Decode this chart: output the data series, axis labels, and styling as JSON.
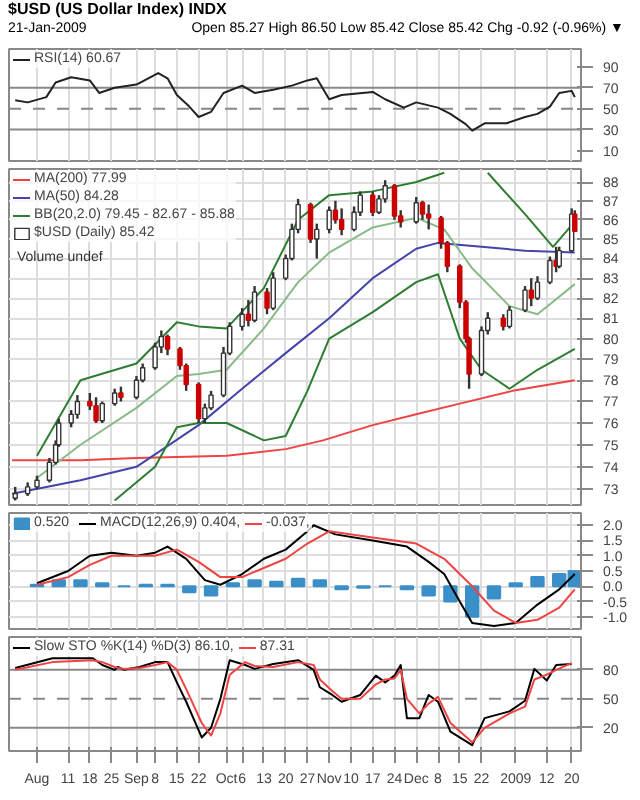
{
  "chart_data": [
    {
      "type": "line",
      "title": "$USD (US Dollar Index) INDX",
      "subtitle": "21-Jan-2009",
      "annotations": [
        "Open 85.27 High 86.50 Low 85.42 Close 85.42 Chg -0.92 (-0.96%) ▼"
      ],
      "xlim": [
        "2008-07-23",
        "2009-01-23"
      ],
      "ylim": [
        0,
        107
      ],
      "yticks": [
        10,
        30,
        50,
        70,
        90
      ],
      "tick_labels": "y",
      "grid": "x",
      "legend": "top left",
      "xticks": [
        {
          "value": "2008-08-01",
          "label": null
        },
        {
          "value": "2008-08-11",
          "label": null
        },
        {
          "value": "2008-08-18",
          "label": null
        },
        {
          "value": "2008-08-25",
          "label": null
        },
        {
          "value": "2008-09-02",
          "label": null
        },
        {
          "value": "2008-09-08",
          "label": null
        },
        {
          "value": "2008-09-15",
          "label": null
        },
        {
          "value": "2008-09-22",
          "label": null
        },
        {
          "value": "2008-10-01",
          "label": null
        },
        {
          "value": "2008-10-06",
          "label": null
        },
        {
          "value": "2008-10-13",
          "label": null
        },
        {
          "value": "2008-10-20",
          "label": null
        },
        {
          "value": "2008-10-27",
          "label": null
        },
        {
          "value": "2008-11-03",
          "label": null
        },
        {
          "value": "2008-11-10",
          "label": null
        },
        {
          "value": "2008-11-17",
          "label": null
        },
        {
          "value": "2008-11-24",
          "label": null
        },
        {
          "value": "2008-12-01",
          "label": null
        },
        {
          "value": "2008-12-08",
          "label": null
        },
        {
          "value": "2008-12-15",
          "label": null
        },
        {
          "value": "2008-12-22",
          "label": null
        },
        {
          "value": "2009-01-02",
          "label": null
        },
        {
          "value": "2009-01-12",
          "label": null
        },
        {
          "value": "2009-01-20",
          "label": null
        }
      ],
      "ref_lines": [
        {
          "axis": "y",
          "value": 70,
          "color": "#888888",
          "line_style": "solid"
        },
        {
          "axis": "y",
          "value": 50,
          "color": "#888888",
          "line_style": "dashed"
        },
        {
          "axis": "y",
          "value": 30,
          "color": "#888888",
          "line_style": "solid"
        }
      ],
      "series": [
        {
          "name": "RSI(14) 60.67",
          "color": "#222222",
          "x": [
            "2008-07-25",
            "2008-07-29",
            "2008-08-04",
            "2008-08-07",
            "2008-08-12",
            "2008-08-18",
            "2008-08-21",
            "2008-08-26",
            "2008-09-02",
            "2008-09-09",
            "2008-09-12",
            "2008-09-15",
            "2008-09-19",
            "2008-09-22",
            "2008-09-26",
            "2008-09-30",
            "2008-10-06",
            "2008-10-10",
            "2008-10-16",
            "2008-10-22",
            "2008-10-27",
            "2008-10-30",
            "2008-11-03",
            "2008-11-07",
            "2008-11-17",
            "2008-11-21",
            "2008-11-27",
            "2008-12-01",
            "2008-12-08",
            "2008-12-12",
            "2008-12-17",
            "2008-12-19",
            "2008-12-23",
            "2008-12-30",
            "2009-01-05",
            "2009-01-09",
            "2009-01-13",
            "2009-01-16",
            "2009-01-20",
            "2009-01-21"
          ],
          "values": [
            58,
            56,
            61,
            75,
            80,
            77,
            65,
            70,
            73,
            84,
            79,
            63,
            52,
            42,
            47,
            65,
            72,
            65,
            68,
            72,
            77,
            79,
            59,
            63,
            66,
            59,
            51,
            56,
            51,
            45,
            35,
            29,
            36,
            36,
            42,
            45,
            52,
            65,
            67,
            61
          ]
        }
      ]
    },
    {
      "type": "candlestick",
      "log": true,
      "annotations": [
        "Volume undef"
      ],
      "xlim": [
        "2008-07-23",
        "2009-01-23"
      ],
      "ylim": [
        72.3,
        88.7
      ],
      "yticks": [
        73,
        74,
        75,
        76,
        77,
        78,
        79,
        80,
        81,
        82,
        83,
        84,
        85,
        86,
        87,
        88
      ],
      "tick_labels": "y",
      "grid": true,
      "legend": "top left",
      "xticks": [
        {
          "value": "2008-08-01",
          "label": null
        },
        {
          "value": "2008-08-11",
          "label": null
        },
        {
          "value": "2008-08-18",
          "label": null
        },
        {
          "value": "2008-08-25",
          "label": null
        },
        {
          "value": "2008-09-02",
          "label": null
        },
        {
          "value": "2008-09-08",
          "label": null
        },
        {
          "value": "2008-09-15",
          "label": null
        },
        {
          "value": "2008-09-22",
          "label": null
        },
        {
          "value": "2008-10-01",
          "label": null
        },
        {
          "value": "2008-10-06",
          "label": null
        },
        {
          "value": "2008-10-13",
          "label": null
        },
        {
          "value": "2008-10-20",
          "label": null
        },
        {
          "value": "2008-10-27",
          "label": null
        },
        {
          "value": "2008-11-03",
          "label": null
        },
        {
          "value": "2008-11-10",
          "label": null
        },
        {
          "value": "2008-11-17",
          "label": null
        },
        {
          "value": "2008-11-24",
          "label": null
        },
        {
          "value": "2008-12-01",
          "label": null
        },
        {
          "value": "2008-12-08",
          "label": null
        },
        {
          "value": "2008-12-15",
          "label": null
        },
        {
          "value": "2008-12-22",
          "label": null
        },
        {
          "value": "2009-01-02",
          "label": null
        },
        {
          "value": "2009-01-12",
          "label": null
        },
        {
          "value": "2009-01-20",
          "label": null
        }
      ],
      "series": [
        {
          "name": "MA(200) 77.99",
          "type": "line",
          "color": "#ee4444",
          "x": [
            "2008-07-24",
            "2008-08-15",
            "2008-09-02",
            "2008-10-01",
            "2008-10-20",
            "2008-11-01",
            "2008-11-17",
            "2008-12-01",
            "2008-12-15",
            "2009-01-01",
            "2009-01-21"
          ],
          "values": [
            74.3,
            74.3,
            74.4,
            74.5,
            74.8,
            75.2,
            75.9,
            76.4,
            76.9,
            77.5,
            78.0
          ]
        },
        {
          "name": "MA(50) 84.28",
          "type": "line",
          "color": "#4444aa",
          "x": [
            "2008-07-24",
            "2008-08-15",
            "2008-09-02",
            "2008-09-22",
            "2008-10-06",
            "2008-10-20",
            "2008-11-03",
            "2008-11-17",
            "2008-12-01",
            "2008-12-08",
            "2008-12-22",
            "2009-01-05",
            "2009-01-21"
          ],
          "values": [
            72.8,
            73.4,
            74.0,
            75.9,
            77.6,
            79.3,
            81.0,
            83.0,
            84.5,
            84.8,
            84.6,
            84.4,
            84.3
          ]
        },
        {
          "name": "BB(20,2.0) 79.45 - 82.67 - 85.88",
          "type": "line",
          "color": "#2e7d32",
          "x": [
            "2008-08-01",
            "2008-08-15",
            "2008-09-02",
            "2008-09-15",
            "2008-09-22",
            "2008-10-01",
            "2008-10-13",
            "2008-10-24",
            "2008-11-03",
            "2008-11-17",
            "2008-12-01",
            "2008-12-10",
            "2008-12-17",
            "2008-12-24",
            "2009-01-05",
            "2009-01-14",
            "2009-01-21"
          ],
          "values": [
            74.5,
            78.0,
            78.8,
            80.8,
            80.6,
            80.5,
            82.5,
            86.0,
            87.3,
            87.5,
            88.0,
            88.5,
            null,
            88.5,
            86.3,
            84.6,
            85.9
          ]
        },
        {
          "type": "line",
          "color": "#88bb88",
          "x": [
            "2008-08-01",
            "2008-08-15",
            "2008-09-02",
            "2008-09-15",
            "2008-09-22",
            "2008-10-01",
            "2008-10-13",
            "2008-10-24",
            "2008-11-03",
            "2008-11-17",
            "2008-12-01",
            "2008-12-10",
            "2008-12-19",
            "2008-12-31",
            "2009-01-09",
            "2009-01-21"
          ],
          "values": [
            73.5,
            75.0,
            76.7,
            78.2,
            78.3,
            78.5,
            80.5,
            82.8,
            84.3,
            85.6,
            86.1,
            85.5,
            83.5,
            81.6,
            81.2,
            82.7
          ]
        },
        {
          "type": "line",
          "color": "#2e7d32",
          "x": [
            "2008-08-26",
            "2008-09-08",
            "2008-09-15",
            "2008-09-22",
            "2008-10-01",
            "2008-10-13",
            "2008-10-20",
            "2008-10-27",
            "2008-11-03",
            "2008-11-17",
            "2008-12-01",
            "2008-12-08",
            "2008-12-15",
            "2008-12-22",
            "2008-12-31",
            "2009-01-09",
            "2009-01-21"
          ],
          "values": [
            72.5,
            74.0,
            75.8,
            76.0,
            76.0,
            75.2,
            75.4,
            77.5,
            80.0,
            81.3,
            82.8,
            83.2,
            80.0,
            78.5,
            77.6,
            78.5,
            79.5
          ]
        },
        {
          "name": "$USD (Daily) 85.42",
          "type": "candlestick",
          "colors": [
            "#ffffff",
            "#ffffff",
            "#ffffff",
            "#ffffff",
            "#ffffff",
            "#ffffff",
            "#ffffff",
            "#ffffff",
            "#cc0000",
            "#cc0000",
            "#ffffff",
            "#ffffff",
            "#cc0000",
            "#ffffff",
            "#ffffff",
            "#ffffff",
            "#ffffff",
            "#cc0000",
            "#cc0000",
            "#cc0000",
            "#cc0000",
            "#ffffff",
            "#ffffff",
            "#ffffff",
            "#ffffff",
            "#ffffff",
            "#cc0000",
            "#ffffff",
            "#cc0000",
            "#ffffff",
            "#ffffff",
            "#ffffff",
            "#ffffff",
            "#cc0000",
            "#ffffff",
            "#ffffff",
            "#cc0000",
            "#cc0000",
            "#ffffff",
            "#ffffff",
            "#cc0000",
            "#ffffff",
            "#ffffff",
            "#cc0000",
            "#cc0000",
            "#ffffff",
            "#cc0000",
            "#cc0000",
            "#cc0000",
            "#cc0000",
            "#cc0000",
            "#cc0000",
            "#cc0000",
            "#ffffff",
            "#ffffff",
            "#cc0000",
            "#ffffff",
            "#ffffff",
            "#cc0000",
            "#ffffff",
            "#ffffff",
            "#cc0000",
            "#ffffff",
            "#ffffff",
            "#cc0000"
          ],
          "x": [
            "2008-07-25",
            "2008-07-29",
            "2008-08-01",
            "2008-08-05",
            "2008-08-07",
            "2008-08-08",
            "2008-08-12",
            "2008-08-14",
            "2008-08-18",
            "2008-08-20",
            "2008-08-22",
            "2008-08-26",
            "2008-08-28",
            "2008-09-02",
            "2008-09-04",
            "2008-09-08",
            "2008-09-10",
            "2008-09-12",
            "2008-09-16",
            "2008-09-18",
            "2008-09-22",
            "2008-09-24",
            "2008-09-26",
            "2008-09-30",
            "2008-10-02",
            "2008-10-06",
            "2008-10-08",
            "2008-10-10",
            "2008-10-14",
            "2008-10-16",
            "2008-10-20",
            "2008-10-22",
            "2008-10-24",
            "2008-10-28",
            "2008-10-30",
            "2008-11-03",
            "2008-11-05",
            "2008-11-07",
            "2008-11-11",
            "2008-11-13",
            "2008-11-17",
            "2008-11-19",
            "2008-11-21",
            "2008-11-24",
            "2008-11-26",
            "2008-12-01",
            "2008-12-03",
            "2008-12-05",
            "2008-12-09",
            "2008-12-11",
            "2008-12-15",
            "2008-12-17",
            "2008-12-18",
            "2008-12-22",
            "2008-12-24",
            "2008-12-29",
            "2008-12-31",
            "2009-01-05",
            "2009-01-07",
            "2009-01-09",
            "2009-01-13",
            "2009-01-15",
            "2009-01-16",
            "2009-01-20",
            "2009-01-21"
          ],
          "ohlc": [
            [
              72.6,
              73.1,
              72.5,
              72.8
            ],
            [
              72.8,
              73.3,
              72.7,
              73.1
            ],
            [
              73.1,
              73.6,
              73.0,
              73.4
            ],
            [
              73.4,
              74.4,
              73.3,
              74.2
            ],
            [
              74.2,
              75.2,
              74.1,
              75.0
            ],
            [
              75.0,
              76.2,
              74.9,
              76.0
            ],
            [
              76.0,
              76.6,
              75.8,
              76.4
            ],
            [
              76.4,
              77.3,
              76.2,
              77.0
            ],
            [
              77.0,
              77.4,
              76.6,
              76.8
            ],
            [
              76.8,
              77.2,
              76.0,
              76.1
            ],
            [
              76.1,
              77.0,
              76.0,
              76.9
            ],
            [
              76.9,
              77.6,
              76.8,
              77.4
            ],
            [
              77.4,
              77.7,
              77.0,
              77.2
            ],
            [
              77.2,
              78.2,
              77.1,
              78.0
            ],
            [
              78.0,
              78.8,
              77.9,
              78.6
            ],
            [
              78.6,
              79.8,
              78.5,
              79.6
            ],
            [
              79.6,
              80.4,
              79.3,
              80.1
            ],
            [
              80.1,
              80.2,
              79.2,
              79.5
            ],
            [
              79.5,
              79.6,
              78.5,
              78.7
            ],
            [
              78.7,
              78.8,
              77.5,
              77.8
            ],
            [
              77.8,
              77.9,
              76.0,
              76.2
            ],
            [
              76.2,
              76.9,
              76.0,
              76.7
            ],
            [
              76.7,
              77.5,
              76.6,
              77.3
            ],
            [
              77.3,
              79.6,
              77.2,
              79.3
            ],
            [
              79.3,
              80.8,
              79.2,
              80.6
            ],
            [
              80.6,
              81.5,
              80.4,
              81.2
            ],
            [
              81.2,
              81.9,
              80.6,
              80.9
            ],
            [
              80.9,
              82.6,
              80.8,
              82.3
            ],
            [
              82.3,
              82.5,
              81.2,
              81.5
            ],
            [
              81.5,
              83.3,
              81.4,
              83.0
            ],
            [
              83.0,
              84.2,
              82.9,
              84.0
            ],
            [
              84.0,
              85.8,
              83.9,
              85.5
            ],
            [
              85.5,
              87.1,
              85.3,
              86.8
            ],
            [
              86.8,
              86.9,
              84.8,
              85.0
            ],
            [
              85.0,
              85.8,
              84.0,
              85.5
            ],
            [
              85.5,
              86.7,
              85.3,
              86.5
            ],
            [
              86.5,
              87.0,
              85.8,
              86.0
            ],
            [
              86.0,
              86.6,
              85.2,
              85.5
            ],
            [
              85.5,
              86.7,
              85.4,
              86.4
            ],
            [
              86.4,
              87.5,
              86.2,
              87.3
            ],
            [
              87.3,
              87.5,
              86.2,
              86.4
            ],
            [
              86.4,
              87.3,
              86.3,
              87.1
            ],
            [
              87.1,
              88.1,
              86.9,
              87.8
            ],
            [
              87.8,
              87.9,
              86.0,
              86.2
            ],
            [
              86.2,
              86.5,
              85.6,
              85.9
            ],
            [
              85.9,
              87.2,
              85.8,
              86.9
            ],
            [
              86.9,
              87.0,
              86.0,
              86.3
            ],
            [
              86.3,
              86.8,
              85.5,
              86.1
            ],
            [
              86.1,
              86.2,
              84.5,
              84.8
            ],
            [
              84.8,
              84.9,
              83.3,
              83.6
            ],
            [
              83.6,
              83.7,
              81.5,
              81.8
            ],
            [
              81.8,
              81.9,
              79.8,
              80.0
            ],
            [
              80.0,
              80.1,
              77.6,
              78.3
            ],
            [
              78.3,
              80.6,
              78.2,
              80.4
            ],
            [
              80.4,
              81.3,
              80.2,
              81.0
            ],
            [
              81.0,
              81.2,
              80.4,
              80.6
            ],
            [
              80.6,
              81.6,
              80.5,
              81.4
            ],
            [
              81.4,
              82.6,
              81.3,
              82.4
            ],
            [
              82.4,
              83.0,
              81.6,
              82.0
            ],
            [
              82.0,
              83.1,
              81.9,
              82.8
            ],
            [
              82.8,
              84.1,
              82.7,
              83.9
            ],
            [
              83.9,
              84.6,
              83.3,
              83.6
            ],
            [
              83.6,
              84.6,
              83.5,
              84.4
            ],
            [
              84.4,
              86.6,
              84.3,
              86.3
            ],
            [
              86.3,
              86.5,
              85.4,
              85.4
            ]
          ]
        }
      ]
    },
    {
      "type": "line",
      "xlim": [
        "2008-07-23",
        "2009-01-23"
      ],
      "ylim": [
        -1.4,
        2.4
      ],
      "yticks": [
        {
          "value": -1,
          "label": "-1.0"
        },
        -0.5,
        {
          "value": 0,
          "label": "0.0"
        },
        0.5,
        {
          "value": 1,
          "label": "1.0"
        },
        1.5,
        {
          "value": 2,
          "label": "2.0"
        }
      ],
      "tick_labels": "y",
      "grid": true,
      "legend": "top left",
      "xticks": [
        {
          "value": "2008-08-01",
          "label": null
        },
        {
          "value": "2008-08-11",
          "label": null
        },
        {
          "value": "2008-08-18",
          "label": null
        },
        {
          "value": "2008-08-25",
          "label": null
        },
        {
          "value": "2008-09-02",
          "label": null
        },
        {
          "value": "2008-09-08",
          "label": null
        },
        {
          "value": "2008-09-15",
          "label": null
        },
        {
          "value": "2008-09-22",
          "label": null
        },
        {
          "value": "2008-10-01",
          "label": null
        },
        {
          "value": "2008-10-06",
          "label": null
        },
        {
          "value": "2008-10-13",
          "label": null
        },
        {
          "value": "2008-10-20",
          "label": null
        },
        {
          "value": "2008-10-27",
          "label": null
        },
        {
          "value": "2008-11-03",
          "label": null
        },
        {
          "value": "2008-11-10",
          "label": null
        },
        {
          "value": "2008-11-17",
          "label": null
        },
        {
          "value": "2008-11-24",
          "label": null
        },
        {
          "value": "2008-12-01",
          "label": null
        },
        {
          "value": "2008-12-08",
          "label": null
        },
        {
          "value": "2008-12-15",
          "label": null
        },
        {
          "value": "2008-12-22",
          "label": null
        },
        {
          "value": "2009-01-02",
          "label": null
        },
        {
          "value": "2009-01-12",
          "label": null
        },
        {
          "value": "2009-01-20",
          "label": null
        }
      ],
      "series": [
        {
          "name": "0.520",
          "type": "bar",
          "color": "#3a8fc8",
          "x": [
            "2008-08-01",
            "2008-08-08",
            "2008-08-15",
            "2008-08-22",
            "2008-08-29",
            "2008-09-05",
            "2008-09-12",
            "2008-09-19",
            "2008-09-26",
            "2008-10-03",
            "2008-10-10",
            "2008-10-17",
            "2008-10-24",
            "2008-10-31",
            "2008-11-07",
            "2008-11-14",
            "2008-11-21",
            "2008-11-28",
            "2008-12-05",
            "2008-12-12",
            "2008-12-19",
            "2008-12-26",
            "2009-01-02",
            "2009-01-09",
            "2009-01-16",
            "2009-01-21"
          ],
          "values": [
            0.05,
            0.2,
            0.2,
            0.1,
            0.0,
            0.05,
            0.05,
            -0.2,
            -0.3,
            0.1,
            0.2,
            0.15,
            0.25,
            0.2,
            -0.1,
            -0.05,
            0.0,
            -0.1,
            -0.3,
            -0.5,
            -1.0,
            -0.4,
            0.1,
            0.3,
            0.4,
            0.5
          ]
        },
        {
          "name": "MACD(12,26,9) 0.404,",
          "color": "#000000",
          "x": [
            "2008-08-01",
            "2008-08-11",
            "2008-08-18",
            "2008-08-25",
            "2008-09-02",
            "2008-09-08",
            "2008-09-12",
            "2008-09-18",
            "2008-09-24",
            "2008-09-29",
            "2008-10-06",
            "2008-10-13",
            "2008-10-20",
            "2008-10-27",
            "2008-10-29",
            "2008-11-05",
            "2008-11-17",
            "2008-11-28",
            "2008-12-05",
            "2008-12-10",
            "2008-12-15",
            "2008-12-19",
            "2008-12-26",
            "2009-01-02",
            "2009-01-09",
            "2009-01-16",
            "2009-01-21"
          ],
          "values": [
            0.1,
            0.5,
            1.0,
            1.1,
            1.0,
            1.1,
            1.3,
            0.9,
            0.2,
            0.05,
            0.4,
            0.9,
            1.2,
            1.8,
            2.0,
            1.7,
            1.5,
            1.3,
            0.8,
            0.4,
            -0.5,
            -1.2,
            -1.3,
            -1.2,
            -0.6,
            -0.1,
            0.4
          ]
        },
        {
          "name": "-0.037,",
          "color": "#ee4444",
          "x": [
            "2008-08-01",
            "2008-08-11",
            "2008-08-18",
            "2008-08-25",
            "2008-09-08",
            "2008-09-15",
            "2008-09-22",
            "2008-09-29",
            "2008-10-06",
            "2008-10-20",
            "2008-10-27",
            "2008-11-03",
            "2008-11-17",
            "2008-12-01",
            "2008-12-10",
            "2008-12-19",
            "2008-12-26",
            "2009-01-02",
            "2009-01-09",
            "2009-01-16",
            "2009-01-21"
          ],
          "values": [
            0.05,
            0.3,
            0.7,
            1.0,
            1.0,
            1.2,
            0.8,
            0.3,
            0.3,
            0.9,
            1.4,
            1.8,
            1.6,
            1.4,
            0.9,
            0.0,
            -0.8,
            -1.2,
            -1.1,
            -0.7,
            -0.1
          ]
        }
      ]
    },
    {
      "type": "line",
      "xlim": [
        "2008-07-23",
        "2009-01-23"
      ],
      "ylim": [
        -4,
        114
      ],
      "yticks": [
        20,
        50,
        80
      ],
      "grid": "x",
      "legend": "top left",
      "xticks": [
        {
          "value": "2008-08-01",
          "label": "Aug"
        },
        {
          "value": "2008-08-11",
          "label": "11"
        },
        {
          "value": "2008-08-18",
          "label": "18"
        },
        {
          "value": "2008-08-25",
          "label": "25"
        },
        {
          "value": "2008-09-02",
          "label": "Sep"
        },
        {
          "value": "2008-09-08",
          "label": "8"
        },
        {
          "value": "2008-09-15",
          "label": "15"
        },
        {
          "value": "2008-09-22",
          "label": "22"
        },
        {
          "value": "2008-10-01",
          "label": "Oct"
        },
        {
          "value": "2008-10-06",
          "label": "6"
        },
        {
          "value": "2008-10-13",
          "label": "13"
        },
        {
          "value": "2008-10-20",
          "label": "20"
        },
        {
          "value": "2008-10-27",
          "label": "27"
        },
        {
          "value": "2008-11-03",
          "label": "Nov"
        },
        {
          "value": "2008-11-10",
          "label": "10"
        },
        {
          "value": "2008-11-17",
          "label": "17"
        },
        {
          "value": "2008-11-24",
          "label": "24"
        },
        {
          "value": "2008-12-01",
          "label": "Dec"
        },
        {
          "value": "2008-12-08",
          "label": "8"
        },
        {
          "value": "2008-12-15",
          "label": "15"
        },
        {
          "value": "2008-12-22",
          "label": "22"
        },
        {
          "value": "2009-01-02",
          "label": "2009"
        },
        {
          "value": "2009-01-12",
          "label": "12"
        },
        {
          "value": "2009-01-20",
          "label": "20"
        }
      ],
      "ref_lines": [
        {
          "axis": "y",
          "value": 80,
          "color": "#888888",
          "line_style": "solid"
        },
        {
          "axis": "y",
          "value": 50,
          "color": "#888888",
          "line_style": "dashed"
        },
        {
          "axis": "y",
          "value": 20,
          "color": "#888888",
          "line_style": "solid"
        }
      ],
      "series": [
        {
          "name": "Slow STO %K(14) %D(3) 86.10,",
          "color": "#000000",
          "x": [
            "2008-07-25",
            "2008-08-06",
            "2008-08-19",
            "2008-08-22",
            "2008-08-26",
            "2008-08-27",
            "2008-08-29",
            "2008-09-03",
            "2008-09-08",
            "2008-09-12",
            "2008-09-15",
            "2008-09-18",
            "2008-09-23",
            "2008-09-26",
            "2008-09-29",
            "2008-10-02",
            "2008-10-07",
            "2008-10-10",
            "2008-10-16",
            "2008-10-24",
            "2008-10-29",
            "2008-10-31",
            "2008-11-04",
            "2008-11-07",
            "2008-11-13",
            "2008-11-18",
            "2008-11-21",
            "2008-11-24",
            "2008-11-26",
            "2008-11-28",
            "2008-12-02",
            "2008-12-05",
            "2008-12-08",
            "2008-12-12",
            "2008-12-19",
            "2008-12-23",
            "2008-12-31",
            "2009-01-05",
            "2009-01-08",
            "2009-01-12",
            "2009-01-15",
            "2009-01-20"
          ],
          "values": [
            82,
            92,
            92,
            85,
            80,
            83,
            80,
            83,
            88,
            88,
            67,
            47,
            10,
            20,
            50,
            90,
            85,
            81,
            86,
            90,
            80,
            62,
            54,
            47,
            54,
            74,
            67,
            74,
            85,
            30,
            30,
            54,
            47,
            16,
            2,
            30,
            37,
            48,
            81,
            69,
            85,
            86
          ]
        },
        {
          "name": "87.31",
          "color": "#ee4444",
          "x": [
            "2008-07-25",
            "2008-08-06",
            "2008-08-19",
            "2008-08-22",
            "2008-08-26",
            "2008-08-27",
            "2008-08-29",
            "2008-09-03",
            "2008-09-08",
            "2008-09-12",
            "2008-09-15",
            "2008-09-18",
            "2008-09-23",
            "2008-09-26",
            "2008-09-29",
            "2008-10-02",
            "2008-10-07",
            "2008-10-10",
            "2008-10-16",
            "2008-10-24",
            "2008-10-29",
            "2008-10-31",
            "2008-11-04",
            "2008-11-07",
            "2008-11-13",
            "2008-11-18",
            "2008-11-21",
            "2008-11-24",
            "2008-11-26",
            "2008-11-28",
            "2008-12-02",
            "2008-12-05",
            "2008-12-08",
            "2008-12-12",
            "2008-12-19",
            "2008-12-23",
            "2008-12-31",
            "2009-01-05",
            "2009-01-08",
            "2009-01-12",
            "2009-01-15",
            "2009-01-20"
          ],
          "values": [
            80,
            88,
            90,
            88,
            83,
            82,
            81,
            82,
            85,
            88,
            80,
            60,
            25,
            12,
            35,
            75,
            88,
            84,
            83,
            88,
            85,
            70,
            58,
            50,
            50,
            65,
            70,
            71,
            80,
            50,
            35,
            45,
            52,
            25,
            5,
            20,
            35,
            42,
            70,
            75,
            80,
            87
          ]
        }
      ]
    }
  ]
}
